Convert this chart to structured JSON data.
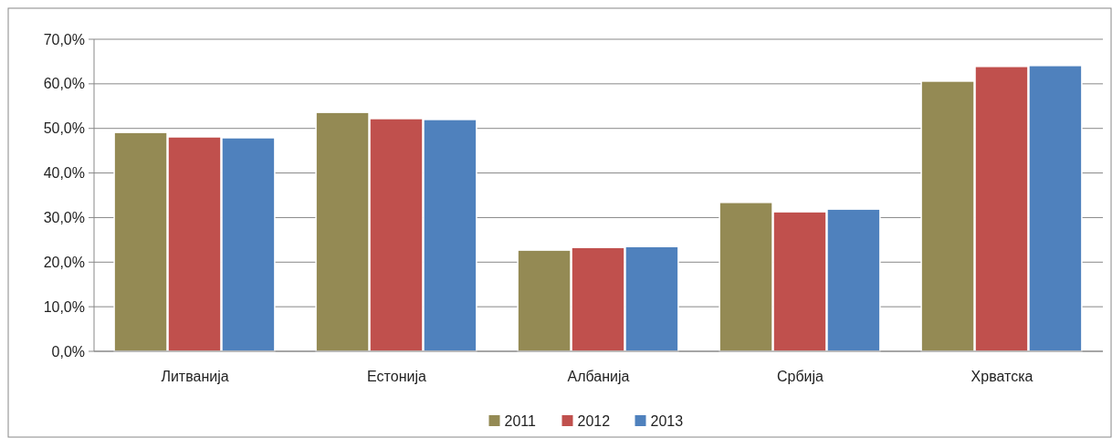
{
  "chart_data": {
    "type": "bar",
    "categories": [
      "Литванија",
      "Естонија",
      "Албанија",
      "Србија",
      "Хрватска"
    ],
    "series": [
      {
        "name": "2011",
        "color": "#948a54",
        "values": [
          49.1,
          53.6,
          22.7,
          33.4,
          60.6
        ]
      },
      {
        "name": "2012",
        "color": "#c0504d",
        "values": [
          48.1,
          52.2,
          23.3,
          31.3,
          63.9
        ]
      },
      {
        "name": "2013",
        "color": "#4f81bd",
        "values": [
          47.9,
          52.0,
          23.5,
          31.9,
          64.1
        ]
      }
    ],
    "ylim": [
      0,
      70
    ],
    "yticks": [
      {
        "value": 0,
        "label": "0,0%"
      },
      {
        "value": 10,
        "label": "10,0%"
      },
      {
        "value": 20,
        "label": "20,0%"
      },
      {
        "value": 30,
        "label": "30,0%"
      },
      {
        "value": 40,
        "label": "40,0%"
      },
      {
        "value": 50,
        "label": "50,0%"
      },
      {
        "value": 60,
        "label": "60,0%"
      },
      {
        "value": 70,
        "label": "70,0%"
      }
    ],
    "grid": "y",
    "legend": "bottom"
  }
}
